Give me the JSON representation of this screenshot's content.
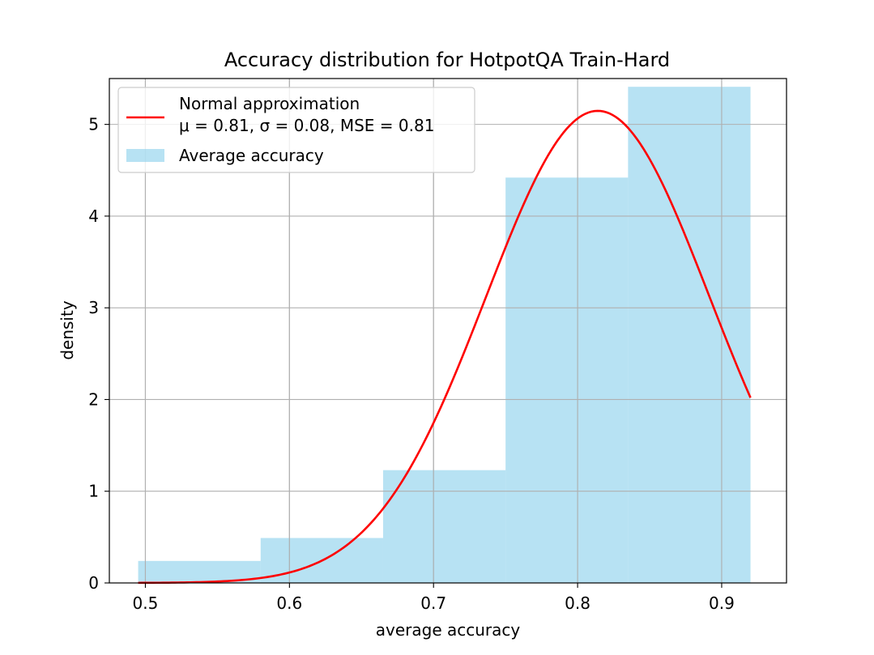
{
  "chart_data": {
    "type": "bar",
    "title": "Accuracy distribution for HotpotQA Train-Hard",
    "xlabel": "average accuracy",
    "ylabel": "density",
    "xlim": [
      0.475,
      0.945
    ],
    "ylim": [
      0,
      5.5
    ],
    "grid": true,
    "x_ticks": [
      0.5,
      0.6,
      0.7,
      0.8,
      0.9
    ],
    "x_tick_labels": [
      "0.5",
      "0.6",
      "0.7",
      "0.8",
      "0.9"
    ],
    "y_ticks": [
      0,
      1,
      2,
      3,
      4,
      5
    ],
    "y_tick_labels": [
      "0",
      "1",
      "2",
      "3",
      "4",
      "5"
    ],
    "legend_position": "top-left",
    "histogram": {
      "name": "Average accuracy",
      "color": "#87ceeb",
      "bin_edges": [
        0.495,
        0.58,
        0.665,
        0.75,
        0.835,
        0.92
      ],
      "values": [
        0.24,
        0.49,
        1.23,
        4.42,
        5.41
      ]
    },
    "curve": {
      "name_line1": "Normal approximation",
      "name_line2": "μ = 0.81, σ = 0.08, MSE = 0.81",
      "color": "#ff0000",
      "mu": 0.814,
      "sigma": 0.0775,
      "x_range": [
        0.495,
        0.92
      ]
    }
  }
}
